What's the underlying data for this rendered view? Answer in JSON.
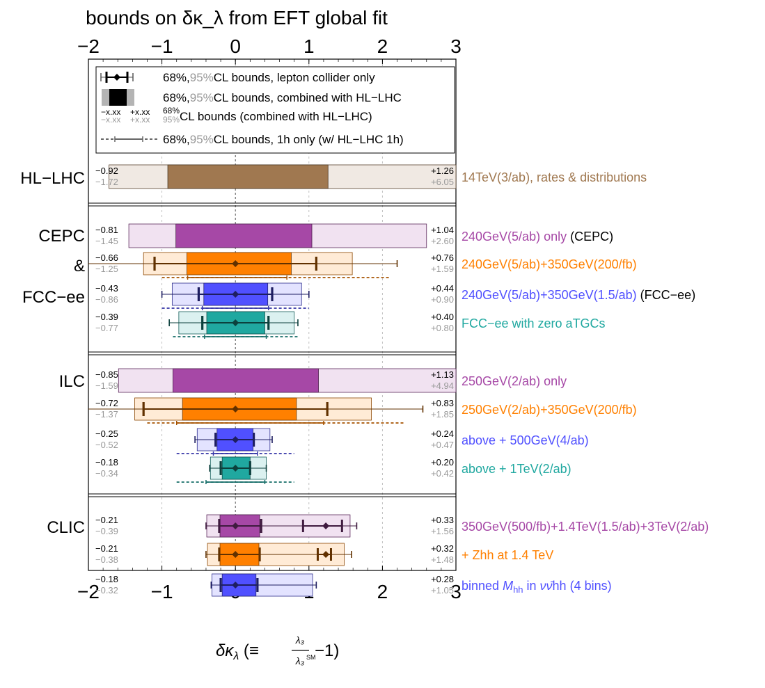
{
  "chart_data": {
    "type": "bar",
    "title": "bounds on δκ_λ from EFT global fit",
    "xlabel": "δκ_λ (≡ λ₃/λ₃^SM −1)",
    "xlim": [
      -2,
      3
    ],
    "xticks": [
      "−2",
      "−1",
      "0",
      "1",
      "2",
      "3"
    ],
    "xtick_values": [
      -2,
      -1,
      0,
      1,
      2,
      3
    ],
    "grid": "dashed vertical at x = -1, 1, 2",
    "legend": {
      "placement": "top",
      "entries": [
        {
          "lead": "68%,",
          "gray": "95%",
          "tail": "CL bounds, lepton collider only"
        },
        {
          "lead": "68%,",
          "gray": "95%",
          "tail": "CL bounds, combined with HL−LHC"
        },
        {
          "lead": "",
          "gray": "",
          "tail": "CL bounds (combined with HL−LHC)",
          "stack_top": "68%",
          "stack_bottom": "95%",
          "sample_top_neg": "−x.xx",
          "sample_top_pos": "+x.xx",
          "sample_bot_neg": "−x.xx",
          "sample_bot_pos": "+x.xx"
        },
        {
          "lead": "68%,",
          "gray": "95%",
          "tail": "CL bounds, 1h only (w/ HL−LHC 1h)"
        }
      ]
    },
    "groups": [
      {
        "name": "HL−LHC",
        "name_lines": [
          "HL−LHC"
        ],
        "rows": [
          {
            "label": "14TeV(3/ab), rates & distributions",
            "color": "#a07850",
            "c68": [
              -0.92,
              1.26
            ],
            "c95": [
              -1.72,
              6.05
            ],
            "t68": [
              "−0.92",
              "+1.26"
            ],
            "t95": [
              "−1.72",
              "+6.05"
            ]
          }
        ]
      },
      {
        "name": "CEPC & FCC−ee",
        "name_lines": [
          "CEPC",
          "&",
          "FCC−ee"
        ],
        "rows": [
          {
            "label": "240GeV(5/ab) only",
            "suffix": " (CEPC)",
            "color": "#a648a6",
            "c68": [
              -0.81,
              1.04
            ],
            "c95": [
              -1.45,
              2.6
            ],
            "t68": [
              "−0.81",
              "+1.04"
            ],
            "t95": [
              "−1.45",
              "+2.60"
            ]
          },
          {
            "label": "240GeV(5/ab)+350GeV(200/fb)",
            "color": "#ff8000",
            "c68": [
              -0.66,
              0.76
            ],
            "c95": [
              -1.25,
              1.59
            ],
            "t68": [
              "−0.66",
              "+0.76"
            ],
            "t95": [
              "−1.25",
              "+1.59"
            ],
            "lep68": [
              -1.1,
              1.1
            ],
            "lep95": [
              -2.2,
              2.2
            ],
            "oneh": [
              -1.0,
              2.1
            ],
            "oneh68": [
              -0.65,
              0.7
            ]
          },
          {
            "label": "240GeV(5/ab)+350GeV(1.5/ab)",
            "suffix": " (FCC−ee)",
            "color": "#5050ff",
            "c68": [
              -0.43,
              0.44
            ],
            "c95": [
              -0.86,
              0.9
            ],
            "t68": [
              "−0.43",
              "+0.44"
            ],
            "t95": [
              "−0.86",
              "+0.90"
            ],
            "lep68": [
              -0.5,
              0.5
            ],
            "lep95": [
              -1.0,
              1.0
            ],
            "oneh": [
              -1.0,
              1.0
            ],
            "oneh68": [
              -0.45,
              0.45
            ]
          },
          {
            "label": "FCC−ee with zero aTGCs",
            "color": "#20a8a0",
            "c68": [
              -0.39,
              0.4
            ],
            "c95": [
              -0.77,
              0.8
            ],
            "t68": [
              "−0.39",
              "+0.40"
            ],
            "t95": [
              "−0.77",
              "+0.80"
            ],
            "lep68": [
              -0.45,
              0.45
            ],
            "lep95": [
              -0.9,
              0.85
            ],
            "oneh": [
              -0.85,
              0.85
            ],
            "oneh68": [
              -0.42,
              0.42
            ]
          }
        ]
      },
      {
        "name": "ILC",
        "name_lines": [
          "ILC"
        ],
        "rows": [
          {
            "label": "250GeV(2/ab) only",
            "color": "#a648a6",
            "c68": [
              -0.85,
              1.13
            ],
            "c95": [
              -1.59,
              4.94
            ],
            "t68": [
              "−0.85",
              "+1.13"
            ],
            "t95": [
              "−1.59",
              "+4.94"
            ]
          },
          {
            "label": "250GeV(2/ab)+350GeV(200/fb)",
            "color": "#ff8000",
            "c68": [
              -0.72,
              0.83
            ],
            "c95": [
              -1.37,
              1.85
            ],
            "t68": [
              "−0.72",
              "+0.83"
            ],
            "t95": [
              "−1.37",
              "+1.85"
            ],
            "lep68": [
              -1.25,
              1.25
            ],
            "lep95": [
              -2.1,
              2.55
            ],
            "oneh": [
              -1.2,
              2.3
            ],
            "oneh68": [
              -0.8,
              1.2
            ]
          },
          {
            "label": "above + 500GeV(4/ab)",
            "color": "#5050ff",
            "c68": [
              -0.25,
              0.24
            ],
            "c95": [
              -0.52,
              0.47
            ],
            "t68": [
              "−0.25",
              "+0.24"
            ],
            "t95": [
              "−0.52",
              "+0.47"
            ],
            "lep68": [
              -0.27,
              0.25
            ],
            "lep95": [
              -0.55,
              0.5
            ],
            "oneh": [
              -0.8,
              0.8
            ],
            "oneh68": [
              -0.3,
              0.3
            ]
          },
          {
            "label": "above + 1TeV(2/ab)",
            "color": "#20a8a0",
            "c68": [
              -0.18,
              0.2
            ],
            "c95": [
              -0.34,
              0.42
            ],
            "t68": [
              "−0.18",
              "+0.20"
            ],
            "t95": [
              "−0.34",
              "+0.42"
            ],
            "lep68": [
              -0.2,
              0.2
            ],
            "lep95": [
              -0.35,
              0.42
            ],
            "oneh": [
              -0.8,
              0.8
            ],
            "oneh68": [
              -0.4,
              0.4
            ]
          }
        ]
      },
      {
        "name": "CLIC",
        "name_lines": [
          "CLIC"
        ],
        "rows": [
          {
            "label": "350GeV(500/fb)+1.4TeV(1.5/ab)+3TeV(2/ab)",
            "color": "#a648a6",
            "c68": [
              -0.21,
              0.33
            ],
            "c95": [
              -0.39,
              1.56
            ],
            "t68": [
              "−0.21",
              "+0.33"
            ],
            "t95": [
              "−0.39",
              "+1.56"
            ],
            "lep68": [
              -0.22,
              0.35
            ],
            "lep95": [
              -0.4,
              1.65
            ],
            "second": [
              0.92,
              1.45
            ],
            "second_center": 1.23
          },
          {
            "label": "+ Zhh at 1.4 TeV",
            "color": "#ff8000",
            "c68": [
              -0.21,
              0.32
            ],
            "c95": [
              -0.38,
              1.48
            ],
            "t68": [
              "−0.21",
              "+0.32"
            ],
            "t95": [
              "−0.38",
              "+1.48"
            ],
            "lep68": [
              -0.22,
              0.33
            ],
            "lep95": [
              -0.4,
              1.58
            ],
            "second": [
              1.12,
              1.3
            ],
            "second_center": 1.23
          },
          {
            "label": "binned",
            "label_var": "M",
            "label_sub": "hh",
            "label_mid": " in ",
            "label_nu": "νν̄",
            "label_end": "hh (4 bins)",
            "color": "#5050ff",
            "c68": [
              -0.18,
              0.28
            ],
            "c95": [
              -0.32,
              1.05
            ],
            "t68": [
              "−0.18",
              "+0.28"
            ],
            "t95": [
              "−0.32",
              "+1.05"
            ],
            "lep68": [
              -0.2,
              0.3
            ],
            "lep95": [
              -0.33,
              1.1
            ]
          }
        ]
      }
    ]
  }
}
